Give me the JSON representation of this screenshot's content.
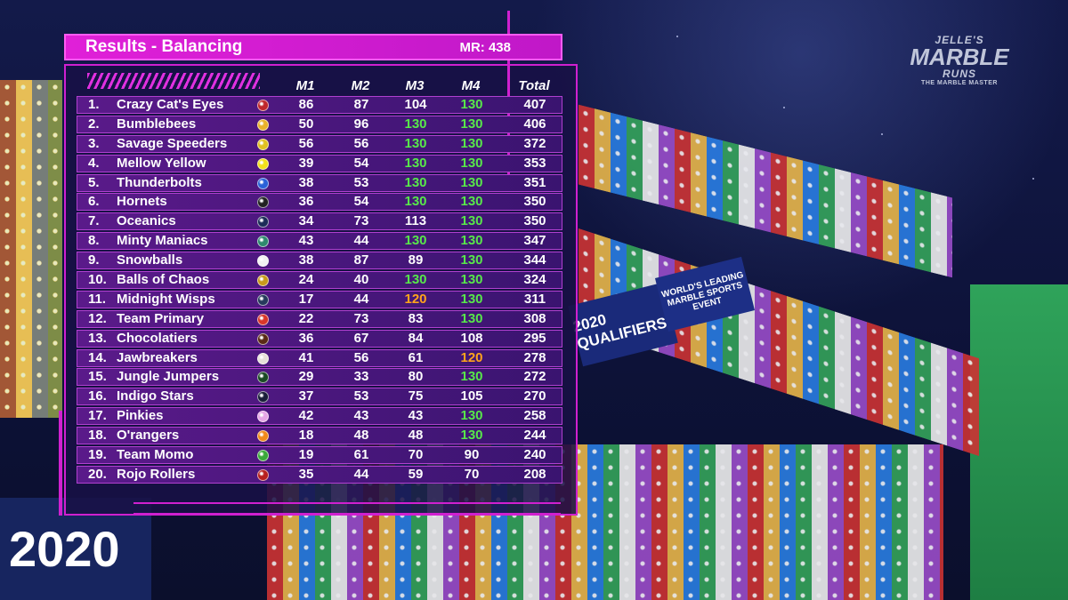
{
  "header": {
    "title": "Results - Balancing",
    "mr": "MR: 438"
  },
  "logo": {
    "line1": "JELLE'S",
    "line2": "MARBLE",
    "line3": "RUNS",
    "tagline": "THE MARBLE MASTER"
  },
  "background": {
    "banner_2020": "2020",
    "banner_qualifiers": "2020 QUALIFIERS",
    "banner_worlds": "WORLD'S LEADING MARBLE SPORTS EVENT"
  },
  "columns": {
    "m1": "M1",
    "m2": "M2",
    "m3": "M3",
    "m4": "M4",
    "total": "Total"
  },
  "highlight_colors": {
    "max": "#58e84a",
    "high": "#ffa41c",
    "default": "#ffffff"
  },
  "rows": [
    {
      "rank": "1.",
      "team": "Crazy Cat's Eyes",
      "badge_color": "#c0282c",
      "m1": "86",
      "m2": "87",
      "m3": "104",
      "m3_hl": "",
      "m4": "130",
      "m4_hl": "green",
      "total": "407"
    },
    {
      "rank": "2.",
      "team": "Bumblebees",
      "badge_color": "#e8b22a",
      "m1": "50",
      "m2": "96",
      "m3": "130",
      "m3_hl": "green",
      "m4": "130",
      "m4_hl": "green",
      "total": "406"
    },
    {
      "rank": "3.",
      "team": "Savage Speeders",
      "badge_color": "#e0c020",
      "m1": "56",
      "m2": "56",
      "m3": "130",
      "m3_hl": "green",
      "m4": "130",
      "m4_hl": "green",
      "total": "372"
    },
    {
      "rank": "4.",
      "team": "Mellow Yellow",
      "badge_color": "#f2e21a",
      "m1": "39",
      "m2": "54",
      "m3": "130",
      "m3_hl": "green",
      "m4": "130",
      "m4_hl": "green",
      "total": "353"
    },
    {
      "rank": "5.",
      "team": "Thunderbolts",
      "badge_color": "#2a62d8",
      "m1": "38",
      "m2": "53",
      "m3": "130",
      "m3_hl": "green",
      "m4": "130",
      "m4_hl": "green",
      "total": "351"
    },
    {
      "rank": "6.",
      "team": "Hornets",
      "badge_color": "#222222",
      "m1": "36",
      "m2": "54",
      "m3": "130",
      "m3_hl": "green",
      "m4": "130",
      "m4_hl": "green",
      "total": "350"
    },
    {
      "rank": "7.",
      "team": "Oceanics",
      "badge_color": "#1c2c58",
      "m1": "34",
      "m2": "73",
      "m3": "113",
      "m3_hl": "",
      "m4": "130",
      "m4_hl": "green",
      "total": "350"
    },
    {
      "rank": "8.",
      "team": "Minty Maniacs",
      "badge_color": "#2e8a6e",
      "m1": "43",
      "m2": "44",
      "m3": "130",
      "m3_hl": "green",
      "m4": "130",
      "m4_hl": "green",
      "total": "347"
    },
    {
      "rank": "9.",
      "team": "Snowballs",
      "badge_color": "#f2f2f2",
      "m1": "38",
      "m2": "87",
      "m3": "89",
      "m3_hl": "",
      "m4": "130",
      "m4_hl": "green",
      "total": "344"
    },
    {
      "rank": "10.",
      "team": "Balls of Chaos",
      "badge_color": "#c89a1a",
      "m1": "24",
      "m2": "40",
      "m3": "130",
      "m3_hl": "green",
      "m4": "130",
      "m4_hl": "green",
      "total": "324"
    },
    {
      "rank": "11.",
      "team": "Midnight Wisps",
      "badge_color": "#263a5c",
      "m1": "17",
      "m2": "44",
      "m3": "120",
      "m3_hl": "orange",
      "m4": "130",
      "m4_hl": "green",
      "total": "311"
    },
    {
      "rank": "12.",
      "team": "Team Primary",
      "badge_color": "#d8362a",
      "m1": "22",
      "m2": "73",
      "m3": "83",
      "m3_hl": "",
      "m4": "130",
      "m4_hl": "green",
      "total": "308"
    },
    {
      "rank": "13.",
      "team": "Chocolatiers",
      "badge_color": "#5a2a16",
      "m1": "36",
      "m2": "67",
      "m3": "84",
      "m3_hl": "",
      "m4": "108",
      "m4_hl": "",
      "total": "295"
    },
    {
      "rank": "14.",
      "team": "Jawbreakers",
      "badge_color": "#e6e0d8",
      "m1": "41",
      "m2": "56",
      "m3": "61",
      "m3_hl": "",
      "m4": "120",
      "m4_hl": "orange",
      "total": "278"
    },
    {
      "rank": "15.",
      "team": "Jungle Jumpers",
      "badge_color": "#1a4a24",
      "m1": "29",
      "m2": "33",
      "m3": "80",
      "m3_hl": "",
      "m4": "130",
      "m4_hl": "green",
      "total": "272"
    },
    {
      "rank": "16.",
      "team": "Indigo Stars",
      "badge_color": "#1a1e3a",
      "m1": "37",
      "m2": "53",
      "m3": "75",
      "m3_hl": "",
      "m4": "105",
      "m4_hl": "",
      "total": "270"
    },
    {
      "rank": "17.",
      "team": "Pinkies",
      "badge_color": "#e6a6e6",
      "m1": "42",
      "m2": "43",
      "m3": "43",
      "m3_hl": "",
      "m4": "130",
      "m4_hl": "green",
      "total": "258"
    },
    {
      "rank": "18.",
      "team": "O'rangers",
      "badge_color": "#f08a1a",
      "m1": "18",
      "m2": "48",
      "m3": "48",
      "m3_hl": "",
      "m4": "130",
      "m4_hl": "green",
      "total": "244"
    },
    {
      "rank": "19.",
      "team": "Team Momo",
      "badge_color": "#3aa83a",
      "m1": "19",
      "m2": "61",
      "m3": "70",
      "m3_hl": "",
      "m4": "90",
      "m4_hl": "",
      "total": "240"
    },
    {
      "rank": "20.",
      "team": "Rojo Rollers",
      "badge_color": "#b8201e",
      "m1": "35",
      "m2": "44",
      "m3": "59",
      "m3_hl": "",
      "m4": "70",
      "m4_hl": "",
      "total": "208"
    }
  ]
}
